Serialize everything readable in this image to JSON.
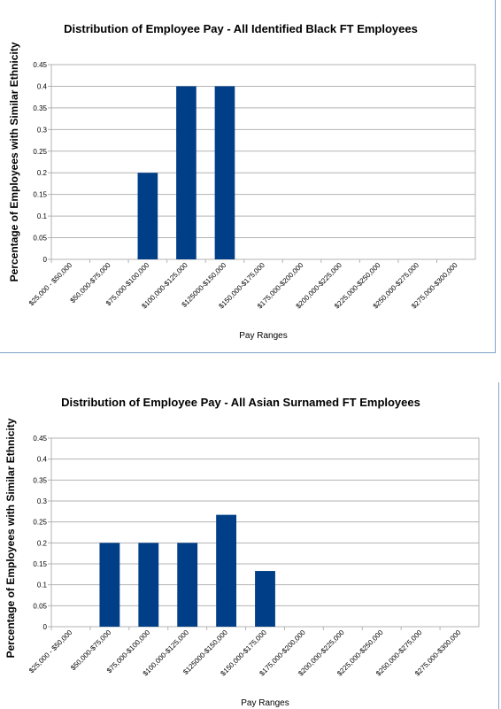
{
  "chart_data": [
    {
      "type": "bar",
      "title": "Distribution of Employee Pay - All Identified Black FT Employees",
      "xlabel": "Pay Ranges",
      "ylabel": "Percentage of Employees with Similar Ethnicity",
      "ylim": [
        0,
        0.45
      ],
      "yticks": [
        "0",
        "0.05",
        "0.1",
        "0.15",
        "0.2",
        "0.25",
        "0.3",
        "0.35",
        "0.4",
        "0.45"
      ],
      "grid": true,
      "bar_color": "#003f87",
      "categories": [
        "$25,000 - $50,000",
        "$50,000-$75,000",
        "$75,000-$100,000",
        "$100,000-$125,000",
        "$125000-$150,000",
        "$150,000-$175,000",
        "$175,000-$200,000",
        "$200,000-$225,000",
        "$225,000-$250,000",
        "$250,000-$275,000",
        "$275,000-$300,000"
      ],
      "values": [
        0,
        0,
        0.2,
        0.4,
        0.4,
        0,
        0,
        0,
        0,
        0,
        0
      ]
    },
    {
      "type": "bar",
      "title": "Distribution of Employee Pay - All Asian Surnamed FT Employees",
      "xlabel": "Pay Ranges",
      "ylabel": "Percentage of Employees with Similar Ethnicity",
      "ylim": [
        0,
        0.45
      ],
      "yticks": [
        "0",
        "0.05",
        "0.1",
        "0.15",
        "0.2",
        "0.25",
        "0.3",
        "0.35",
        "0.4",
        "0.45"
      ],
      "grid": true,
      "bar_color": "#003f87",
      "categories": [
        "$25,000 - $50,000",
        "$50,000-$75,000",
        "$75,000-$100,000",
        "$100,000-$125,000",
        "$125000-$150,000",
        "$150,000-$175,000",
        "$175,000-$200,000",
        "$200,000-$225,000",
        "$225,000-$250,000",
        "$250,000-$275,000",
        "$275,000-$300,000"
      ],
      "values": [
        0,
        0.2,
        0.2,
        0.2,
        0.267,
        0.133,
        0,
        0,
        0,
        0,
        0
      ]
    }
  ]
}
